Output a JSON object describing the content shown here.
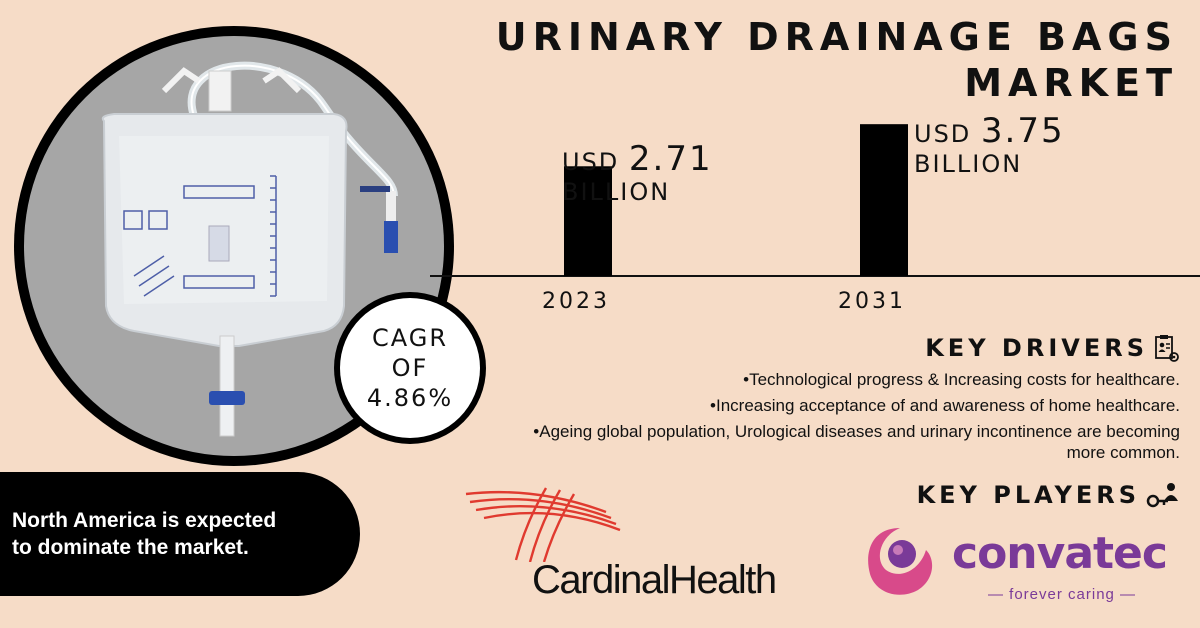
{
  "title": {
    "line1": "URINARY DRAINAGE BAGS",
    "line2": "MARKET"
  },
  "chart_data": {
    "type": "bar",
    "categories": [
      "2023",
      "2031"
    ],
    "values": [
      2.71,
      3.75
    ],
    "value_labels": [
      {
        "line1": "USD ",
        "amount": "2.71",
        "line2": "BILLION"
      },
      {
        "line1": "USD ",
        "amount": "3.75",
        "line2": "BILLION"
      }
    ],
    "title": "",
    "xlabel": "",
    "ylabel": "",
    "ylim": [
      0,
      4.1
    ],
    "grid": false,
    "color": "#000000"
  },
  "cagr": {
    "line1": "CAGR",
    "line2": "OF",
    "line3": "4.86%"
  },
  "key_drivers": {
    "title": "KEY DRIVERS",
    "icon": "checklist-icon",
    "items": [
      "•Technological progress & Increasing costs for healthcare.",
      "•Increasing acceptance of and awareness of home healthcare.",
      "•Ageing global population, Urological diseases and urinary incontinence are becoming more common."
    ]
  },
  "key_players": {
    "title": "KEY PLAYERS",
    "icon": "key-person-icon",
    "cardinal": "CardinalHealth",
    "convatec": "convatec",
    "convatec_tagline": "— forever caring —"
  },
  "region_note": {
    "line1": "North America is expected",
    "line2": "to dominate the market."
  },
  "colors": {
    "background": "#f6dcc7",
    "cardinal_red": "#e03a2f",
    "convatec_purple": "#7a3a98",
    "convatec_pink": "#d84a8a"
  }
}
